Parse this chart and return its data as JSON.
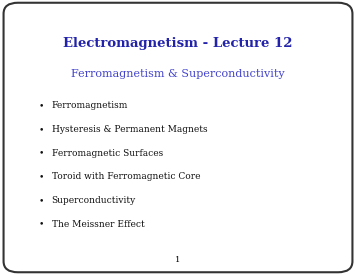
{
  "title": "Electromagnetism - Lecture 12",
  "subtitle": "Ferromagnetism & Superconductivity",
  "bullet_points": [
    "Ferromagnetism",
    "Hysteresis & Permanent Magnets",
    "Ferromagnetic Surfaces",
    "Toroid with Ferromagnetic Core",
    "Superconductivity",
    "The Meissner Effect"
  ],
  "title_color": "#2222aa",
  "subtitle_color": "#4444cc",
  "bullet_color": "#111111",
  "background_color": "#ffffff",
  "border_color": "#333333",
  "page_number": "1",
  "title_fontsize": 9.5,
  "subtitle_fontsize": 8.0,
  "bullet_fontsize": 6.5,
  "page_num_fontsize": 6.0
}
